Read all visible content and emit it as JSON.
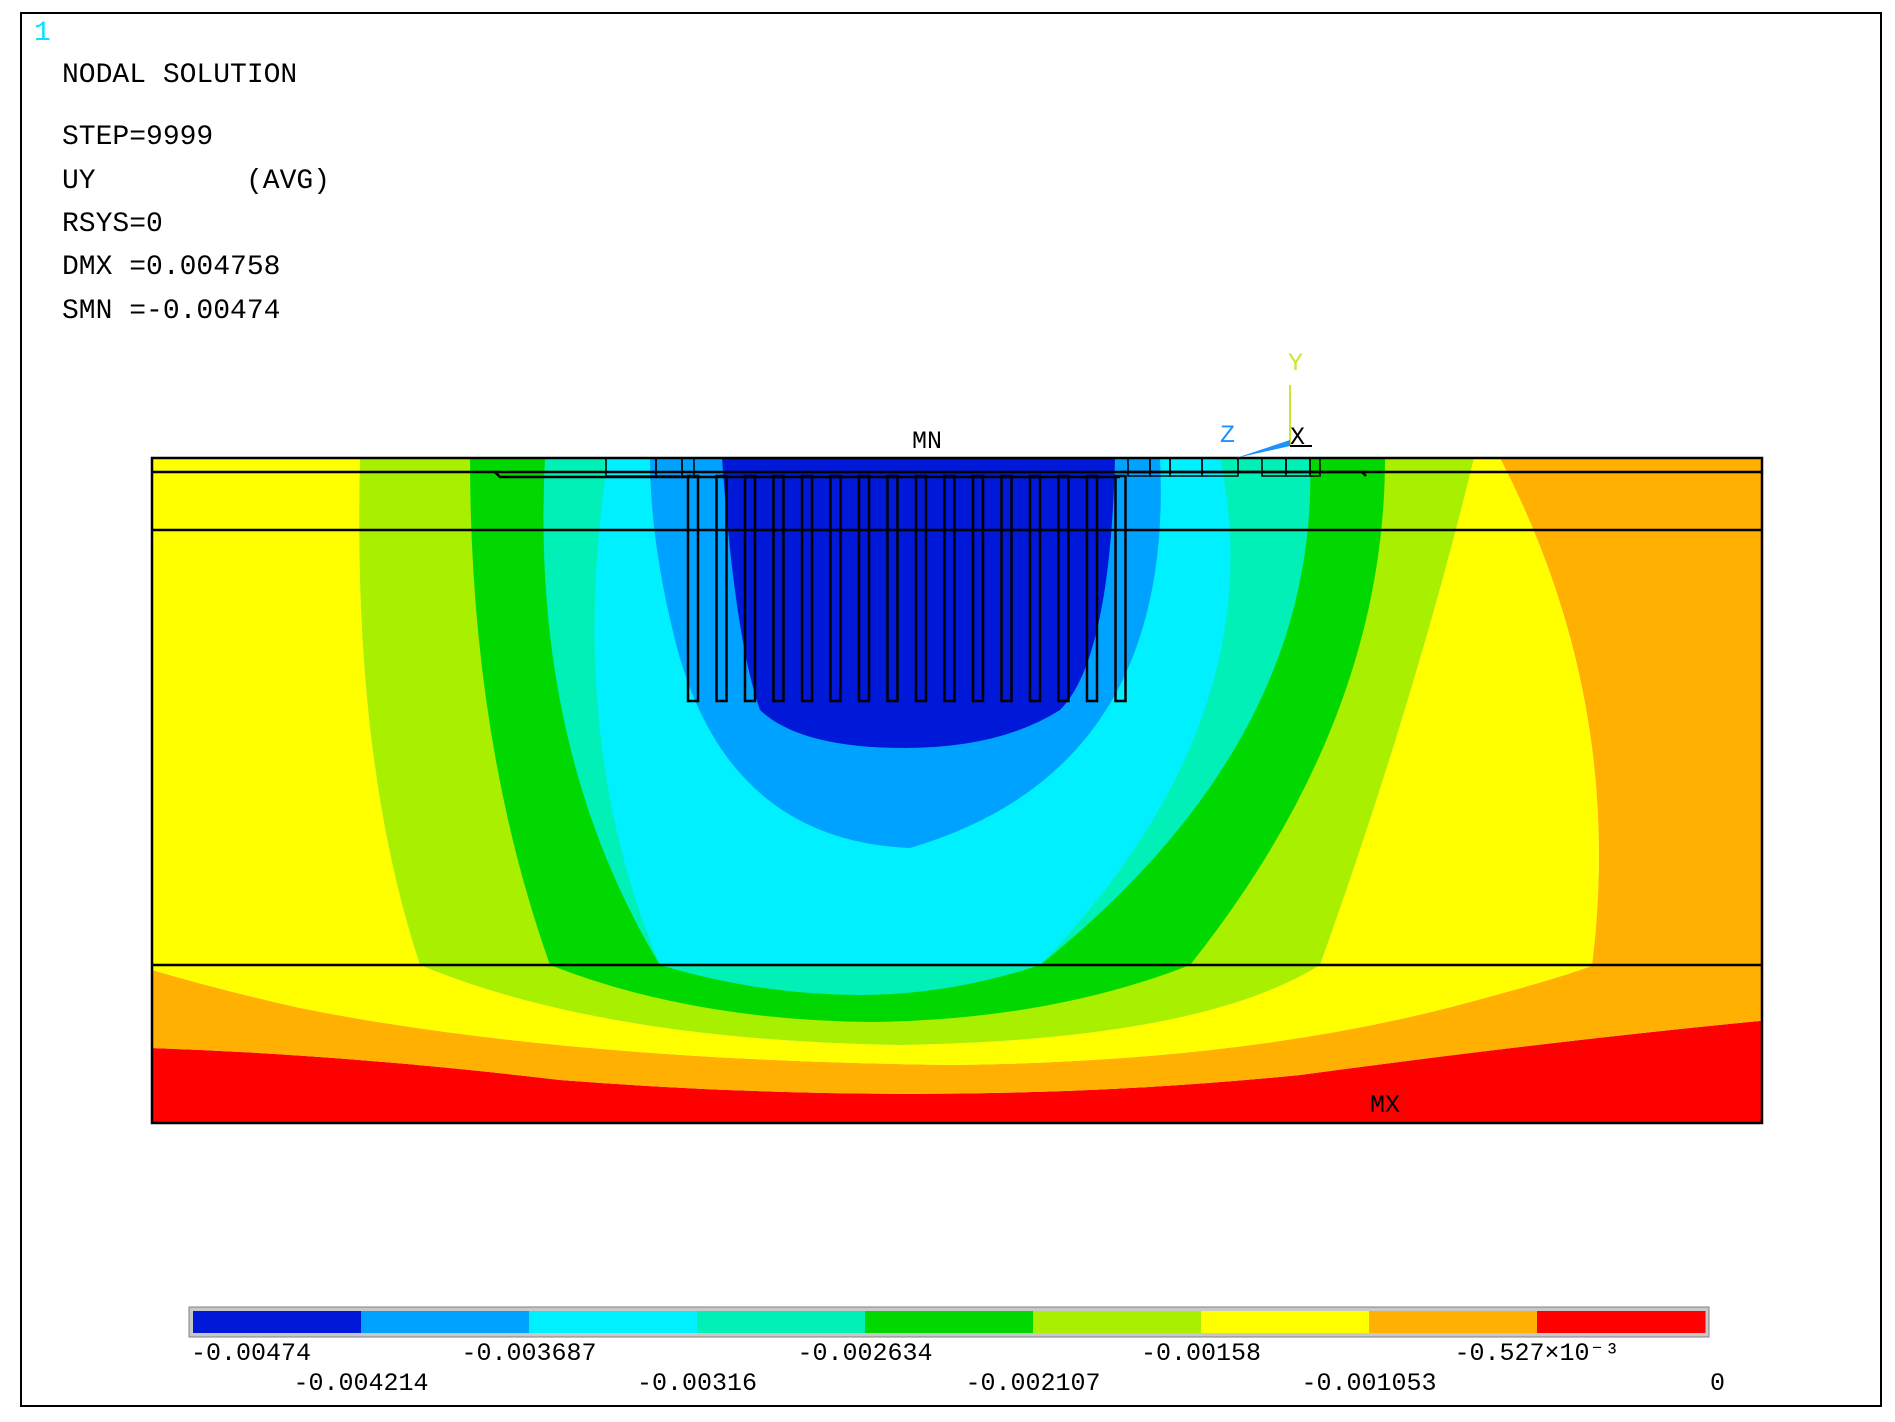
{
  "window_number": "1",
  "header": {
    "title": "NODAL SOLUTION",
    "step": "STEP=9999",
    "quantity": "UY",
    "avg": "(AVG)",
    "rsys": "RSYS=0",
    "dmx": "DMX =0.004758",
    "smn": "SMN =-0.00474"
  },
  "markers": {
    "min": "MN",
    "max": "MX"
  },
  "triad": {
    "y": "Y",
    "z": "Z",
    "x": "X"
  },
  "legend": {
    "colors": [
      "#0018d8",
      "#00a2ff",
      "#00f0ff",
      "#00f0b8",
      "#00d800",
      "#a8f000",
      "#ffff00",
      "#ffb000",
      "#ff0000"
    ],
    "labels_top": [
      "-0.00474",
      "-0.003687",
      "-0.002634",
      "-0.00158",
      "-0.527×10⁻³"
    ],
    "labels_bottom": [
      "-0.004214",
      "-0.00316",
      "-0.002107",
      "-0.001053",
      "0"
    ]
  },
  "contour_colors": {
    "red": "#ff0000",
    "orange": "#ffb000",
    "yellow": "#ffff00",
    "yellowgreen": "#a8f000",
    "green": "#00d800",
    "aquagreen": "#00f0b8",
    "cyan": "#00f0ff",
    "lightblue": "#00a2ff",
    "blue": "#0018d8"
  }
}
